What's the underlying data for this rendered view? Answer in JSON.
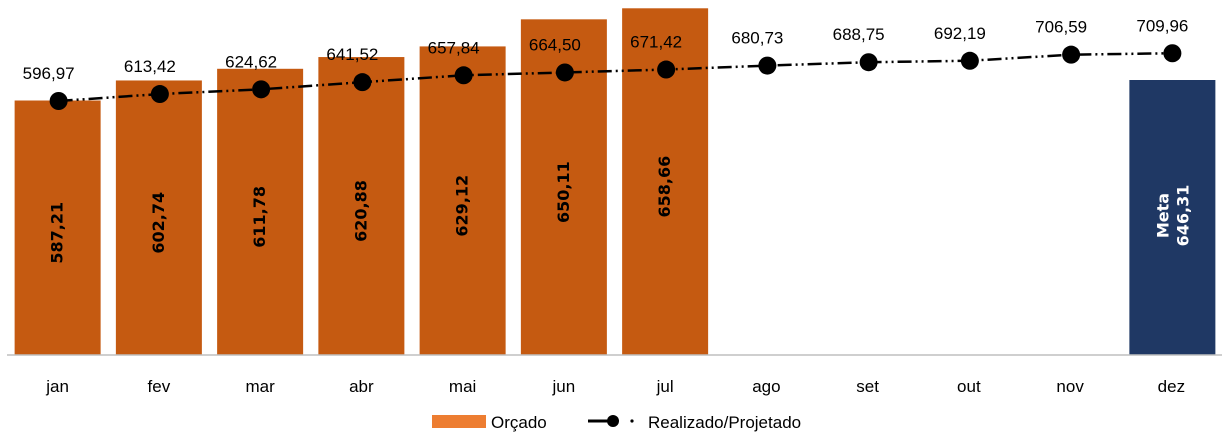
{
  "chart_data": {
    "type": "bar",
    "title": "",
    "xlabel": "",
    "ylabel": "",
    "ylim": [
      0,
      725
    ],
    "grid": false,
    "legend_position": "bottom-center",
    "categories": [
      "jan",
      "fev",
      "mar",
      "abr",
      "mai",
      "jun",
      "jul",
      "ago",
      "set",
      "out",
      "nov",
      "dez"
    ],
    "series": [
      {
        "name": "Orçado",
        "kind": "bar",
        "color": "#C55A11",
        "values": [
          587.21,
          602.74,
          611.78,
          620.88,
          629.12,
          650.11,
          658.66,
          null,
          null,
          null,
          null,
          null
        ],
        "labels": [
          "587,21",
          "602,74",
          "611,78",
          "620,88",
          "629,12",
          "650,11",
          "658,66",
          "",
          "",
          "",
          "",
          ""
        ]
      },
      {
        "name": "Realizado/Projetado",
        "kind": "line",
        "color": "#000000",
        "values": [
          596.97,
          613.42,
          624.62,
          641.52,
          657.84,
          664.5,
          671.42,
          680.73,
          688.75,
          692.19,
          706.59,
          709.96
        ],
        "labels": [
          "596,97",
          "613,42",
          "624,62",
          "641,52",
          "657,84",
          "664,50",
          "671,42",
          "680,73",
          "688,75",
          "692,19",
          "706,59",
          "709,96"
        ]
      }
    ],
    "target": {
      "category": "dez",
      "value": 646.31,
      "label": "Meta",
      "value_label": "646,31",
      "color": "#1F3864"
    },
    "legend_color_swatch": "#ED7D31"
  }
}
